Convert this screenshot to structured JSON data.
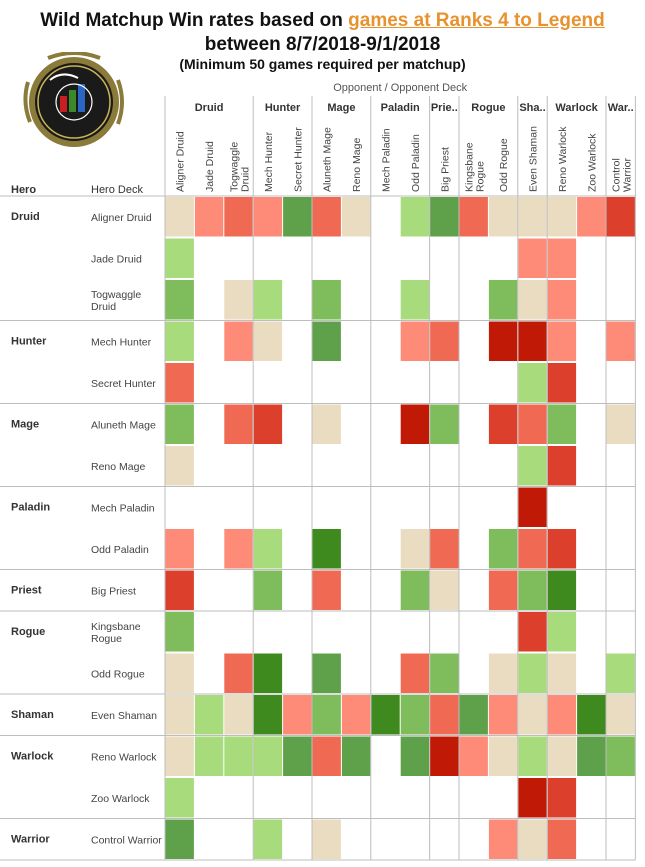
{
  "title": {
    "prefix": "Wild Matchup Win rates based on ",
    "highlight": "games at Ranks 4 to Legend",
    "line2": "between 8/7/2018-9/1/2018",
    "line3": "(Minimum 50 games required per matchup)"
  },
  "logo": {
    "text": "DATA REAPER REPORT",
    "subtext": "VS SYNDICATE PRESENTS"
  },
  "header": {
    "opponent_label": "Opponent  /  Opponent Deck",
    "hero_label": "Hero",
    "hero_deck_label": "Hero Deck"
  },
  "colors": {
    "bg": "#ffffff",
    "grid": "#d9d9d9",
    "title_highlight": "#e8922e",
    "scale": {
      "fav_strong": "#3e8a1f",
      "fav_med": "#5fa04b",
      "fav_mild": "#7fbd5c",
      "fav_light": "#a7db7c",
      "even": "#e9dcc1",
      "unfav_light": "#fe8b78",
      "unfav_mild": "#f06a53",
      "unfav_med": "#dc3f2b",
      "unfav_strong": "#c01a07"
    }
  },
  "chart_data": {
    "type": "heatmap",
    "legend": "none",
    "value_scale": "1 = favored, 0 = even, -1 = unfavored (cell color bands)",
    "opponent_classes": [
      {
        "name": "Druid",
        "span": 3
      },
      {
        "name": "Hunter",
        "span": 2
      },
      {
        "name": "Mage",
        "span": 2
      },
      {
        "name": "Paladin",
        "span": 2
      },
      {
        "name": "Prie..",
        "span": 1
      },
      {
        "name": "Rogue",
        "span": 2
      },
      {
        "name": "Sha..",
        "span": 1
      },
      {
        "name": "Warlock",
        "span": 2
      },
      {
        "name": "War..",
        "span": 1
      }
    ],
    "columns": [
      "Aligner Druid",
      "Jade Druid",
      "Togwaggle Druid",
      "Mech Hunter",
      "Secret Hunter",
      "Aluneth Mage",
      "Reno Mage",
      "Mech Paladin",
      "Odd Paladin",
      "Big Priest",
      "Kingsbane Rogue",
      "Odd Rogue",
      "Even Shaman",
      "Reno Warlock",
      "Zoo Warlock",
      "Control Warrior"
    ],
    "hero_classes": [
      {
        "name": "Druid",
        "span": 3
      },
      {
        "name": "Hunter",
        "span": 2
      },
      {
        "name": "Mage",
        "span": 2
      },
      {
        "name": "Paladin",
        "span": 2
      },
      {
        "name": "Priest",
        "span": 1
      },
      {
        "name": "Rogue",
        "span": 2
      },
      {
        "name": "Shaman",
        "span": 1
      },
      {
        "name": "Warlock",
        "span": 2
      },
      {
        "name": "Warrior",
        "span": 1
      }
    ],
    "rows": [
      {
        "deck": "Aligner Druid",
        "cells": [
          "E",
          "U",
          "M",
          "U",
          "F",
          "M",
          "E",
          null,
          "L",
          "F",
          "M",
          "E",
          "E",
          "E",
          "U",
          "H"
        ]
      },
      {
        "deck": "Jade Druid",
        "cells": [
          "L",
          null,
          null,
          null,
          null,
          null,
          null,
          null,
          null,
          null,
          null,
          null,
          "U",
          "U",
          null,
          null
        ]
      },
      {
        "deck": "Togwaggle\nDruid",
        "cells": [
          "K",
          null,
          "E",
          "L",
          null,
          "K",
          null,
          null,
          "L",
          null,
          null,
          "K",
          "E",
          "U",
          null,
          null
        ]
      },
      {
        "deck": "Mech Hunter",
        "cells": [
          "L",
          null,
          "U",
          "E",
          null,
          "F",
          null,
          null,
          "U",
          "M",
          null,
          "S",
          "S",
          "U",
          null,
          "U"
        ]
      },
      {
        "deck": "Secret Hunter",
        "cells": [
          "M",
          null,
          null,
          null,
          null,
          null,
          null,
          null,
          null,
          null,
          null,
          null,
          "L",
          "H",
          null,
          null
        ]
      },
      {
        "deck": "Aluneth Mage",
        "cells": [
          "K",
          null,
          "M",
          "H",
          null,
          "E",
          null,
          null,
          "S",
          "K",
          null,
          "H",
          "M",
          "K",
          null,
          "E"
        ]
      },
      {
        "deck": "Reno Mage",
        "cells": [
          "E",
          null,
          null,
          null,
          null,
          null,
          null,
          null,
          null,
          null,
          null,
          null,
          "L",
          "H",
          null,
          null
        ]
      },
      {
        "deck": "Mech Paladin",
        "cells": [
          null,
          null,
          null,
          null,
          null,
          null,
          null,
          null,
          null,
          null,
          null,
          null,
          "S",
          null,
          null,
          null
        ]
      },
      {
        "deck": "Odd Paladin",
        "cells": [
          "U",
          null,
          "U",
          "L",
          null,
          "G",
          null,
          null,
          "E",
          "M",
          null,
          "K",
          "M",
          "H",
          null,
          null
        ]
      },
      {
        "deck": "Big Priest",
        "cells": [
          "H",
          null,
          null,
          "K",
          null,
          "M",
          null,
          null,
          "K",
          "E",
          null,
          "M",
          "K",
          "G",
          null,
          null
        ]
      },
      {
        "deck": "Kingsbane\nRogue",
        "cells": [
          "K",
          null,
          null,
          null,
          null,
          null,
          null,
          null,
          null,
          null,
          null,
          null,
          "H",
          "L",
          null,
          null
        ]
      },
      {
        "deck": "Odd Rogue",
        "cells": [
          "E",
          null,
          "M",
          "G",
          null,
          "F",
          null,
          null,
          "M",
          "K",
          null,
          "E",
          "L",
          "E",
          null,
          "L"
        ]
      },
      {
        "deck": "Even Shaman",
        "cells": [
          "E",
          "L",
          "E",
          "G",
          "U",
          "K",
          "U",
          "G",
          "K",
          "M",
          "F",
          "U",
          "E",
          "U",
          "G",
          "E"
        ]
      },
      {
        "deck": "Reno Warlock",
        "cells": [
          "E",
          "L",
          "L",
          "L",
          "F",
          "M",
          "F",
          null,
          "F",
          "S",
          "U",
          "E",
          "L",
          "E",
          "F",
          "K"
        ]
      },
      {
        "deck": "Zoo Warlock",
        "cells": [
          "L",
          null,
          null,
          null,
          null,
          null,
          null,
          null,
          null,
          null,
          null,
          null,
          "S",
          "H",
          null,
          null
        ]
      },
      {
        "deck": "Control Warrior",
        "cells": [
          "F",
          null,
          null,
          "L",
          null,
          "E",
          null,
          null,
          null,
          null,
          null,
          "U",
          "E",
          "M",
          null,
          null
        ]
      }
    ],
    "cell_legend": {
      "G": "fav_strong",
      "F": "fav_med",
      "K": "fav_mild",
      "L": "fav_light",
      "E": "even",
      "U": "unfav_light",
      "M": "unfav_mild",
      "H": "unfav_med",
      "S": "unfav_strong"
    }
  }
}
